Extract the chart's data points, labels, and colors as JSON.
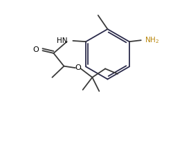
{
  "bg_color": "#ffffff",
  "line_color": "#3a3a3a",
  "ring_color": "#2a2a4a",
  "label_color": "#000000",
  "nh2_color": "#b8860b",
  "o_color": "#4169e1",
  "figsize": [
    2.51,
    2.14
  ],
  "dpi": 100,
  "lw": 1.3,
  "xlim": [
    0,
    10
  ],
  "ylim": [
    0,
    8.5
  ]
}
